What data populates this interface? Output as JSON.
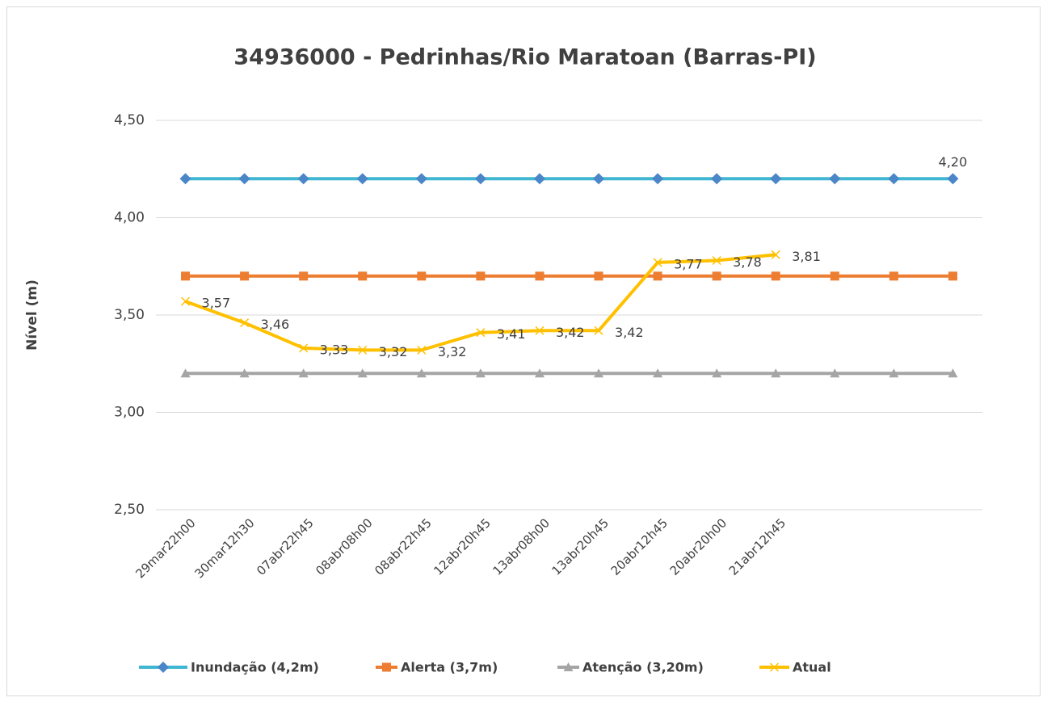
{
  "chart_data": {
    "type": "line",
    "title": "34936000 - Pedrinhas/Rio Maratoan (Barras-PI)",
    "y_label": "Nível (m)",
    "categories": [
      "29mar22h00",
      "30mar12h30",
      "07abr22h45",
      "08abr08h00",
      "08abr22h45",
      "12abr20h45",
      "13abr08h00",
      "13abr20h45",
      "20abr12h45",
      "20abr20h00",
      "21abr12h45",
      null,
      null,
      null
    ],
    "ylim": [
      2.5,
      4.5
    ],
    "yticks": [
      {
        "value": 2.5,
        "label": "2,50"
      },
      {
        "value": 3.0,
        "label": "3,00"
      },
      {
        "value": 3.5,
        "label": "3,50"
      },
      {
        "value": 4.0,
        "label": "4,00"
      },
      {
        "value": 4.5,
        "label": "4,50"
      }
    ],
    "grid": true,
    "legend": "bottom",
    "series": [
      {
        "name": "Inundação (4,2m)",
        "color": "#41b6d2",
        "marker_color": "#4a86c8",
        "marker": "diamond",
        "values": [
          4.2,
          4.2,
          4.2,
          4.2,
          4.2,
          4.2,
          4.2,
          4.2,
          4.2,
          4.2,
          4.2,
          4.2,
          4.2,
          4.2
        ],
        "value_labels": [
          null,
          null,
          null,
          null,
          null,
          null,
          null,
          null,
          null,
          null,
          null,
          null,
          null,
          "4,20"
        ]
      },
      {
        "name": "Alerta (3,7m)",
        "color": "#ed7d31",
        "marker_color": "#ed7d31",
        "marker": "square",
        "values": [
          3.7,
          3.7,
          3.7,
          3.7,
          3.7,
          3.7,
          3.7,
          3.7,
          3.7,
          3.7,
          3.7,
          3.7,
          3.7,
          3.7
        ]
      },
      {
        "name": "Atenção (3,20m)",
        "color": "#a5a5a5",
        "marker_color": "#a5a5a5",
        "marker": "triangle",
        "values": [
          3.2,
          3.2,
          3.2,
          3.2,
          3.2,
          3.2,
          3.2,
          3.2,
          3.2,
          3.2,
          3.2,
          3.2,
          3.2,
          3.2
        ]
      },
      {
        "name": "Atual",
        "color": "#ffc000",
        "marker_color": "#ffc000",
        "marker": "x",
        "values": [
          3.57,
          3.46,
          3.33,
          3.32,
          3.32,
          3.41,
          3.42,
          3.42,
          3.77,
          3.78,
          3.81,
          null,
          null,
          null
        ],
        "value_labels": [
          "3,57",
          "3,46",
          "3,33",
          "3,32",
          "3,32",
          "3,41",
          "3,42",
          "3,42",
          "3,77",
          "3,78",
          "3,81",
          null,
          null,
          null
        ]
      }
    ]
  }
}
